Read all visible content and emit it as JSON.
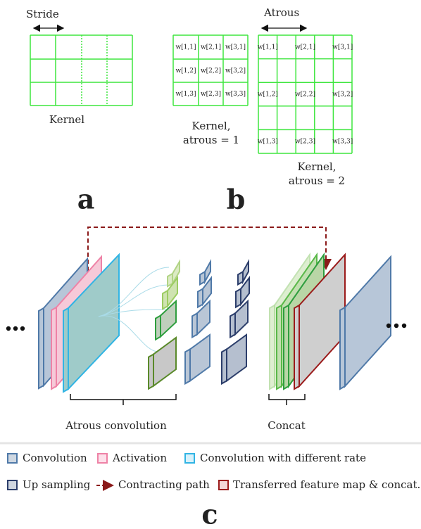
{
  "panel_a": {
    "stride_label": "Stride",
    "kernel_label": "Kernel",
    "letter": "a"
  },
  "panel_b": {
    "kernel1": {
      "cells": [
        [
          "w[1,1]",
          "w[2,1]",
          "w[3,1]"
        ],
        [
          "w[1,2]",
          "w[2,2]",
          "w[3,2]"
        ],
        [
          "w[1,3]",
          "w[2,3]",
          "w[3,3]"
        ]
      ],
      "caption": [
        "Kernel,",
        "atrous = 1"
      ]
    },
    "atrous_label": "Atrous",
    "kernel2": {
      "cells": [
        [
          "w[1,1]",
          "w[2,1]",
          "w[3,1]"
        ],
        [
          "w[1,2]",
          "w[2,2]",
          "w[3,2]"
        ],
        [
          "w[1,3]",
          "w[2,3]",
          "w[3,3]"
        ]
      ],
      "caption": [
        "Kernel,",
        "atrous = 2"
      ]
    },
    "letter": "b"
  },
  "panel_c": {
    "atrous_conv_label": "Atrous convolution",
    "concat_label": "Concat",
    "legend": [
      [
        "Convolution",
        "Activation",
        "Convolution with different rate"
      ],
      [
        "Up sampling",
        "Contracting path",
        "Transferred feature map & concat."
      ]
    ],
    "letter": "c"
  }
}
